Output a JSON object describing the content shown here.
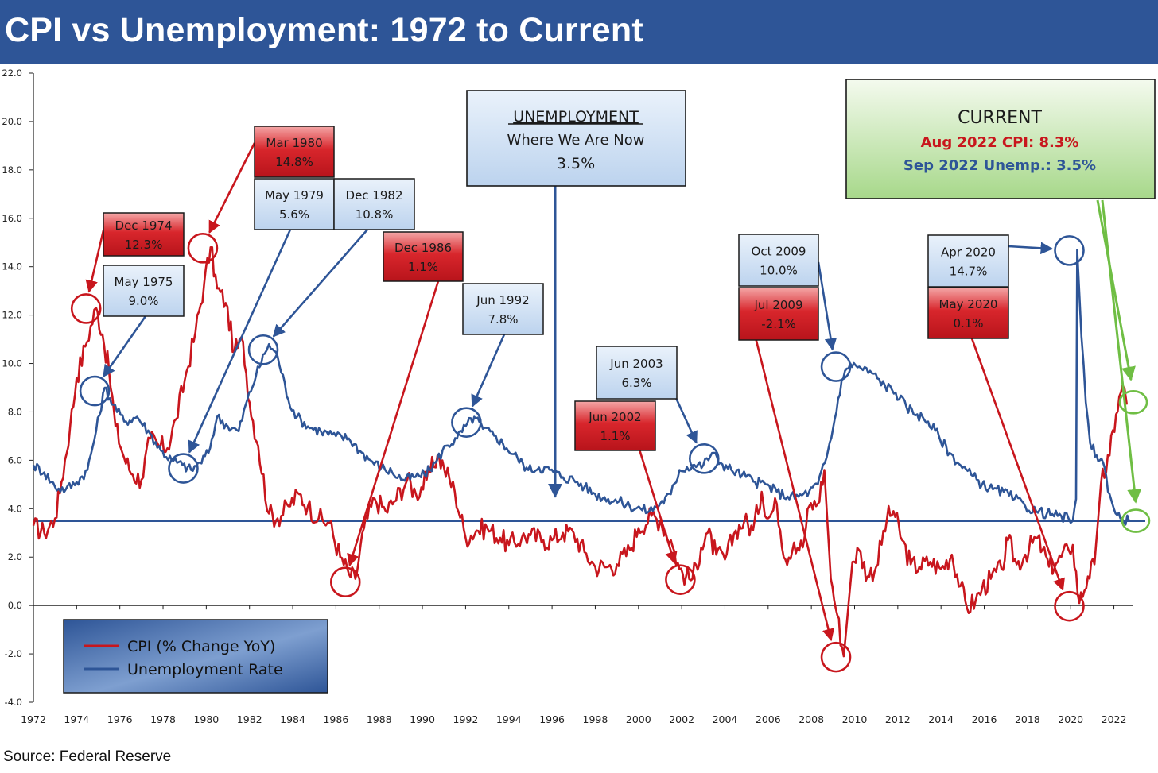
{
  "title": "CPI vs Unemployment: 1972 to Current",
  "source": "Source: Federal Reserve",
  "colors": {
    "title_bg": "#2e5597",
    "cpi": "#c8161d",
    "unemployment": "#2e5597",
    "current": "#6fbe44",
    "red_box": "#d0242b",
    "blue_box": "#c9dcf1"
  },
  "chart_data": {
    "type": "line",
    "title": "CPI vs Unemployment: 1972 to Current",
    "xlabel": "",
    "ylabel": "",
    "xlim": [
      1972,
      2022.9
    ],
    "ylim": [
      -4.0,
      22.0
    ],
    "x_ticks": [
      "1972",
      "1974",
      "1976",
      "1978",
      "1980",
      "1982",
      "1984",
      "1986",
      "1988",
      "1990",
      "1992",
      "1994",
      "1996",
      "1998",
      "2000",
      "2002",
      "2004",
      "2006",
      "2008",
      "2010",
      "2012",
      "2014",
      "2016",
      "2018",
      "2020",
      "2022"
    ],
    "y_ticks": [
      "22.0",
      "20.0",
      "18.0",
      "16.0",
      "14.0",
      "12.0",
      "10.0",
      "8.0",
      "6.0",
      "4.0",
      "2.0",
      "0.0",
      "-2.0",
      "-4.0"
    ],
    "grid": false,
    "legend_position": "bottom-left",
    "series": [
      {
        "name": "CPI (% Change YoY)",
        "color": "#c8161d",
        "points": [
          [
            1972.0,
            3.3
          ],
          [
            1972.5,
            3.0
          ],
          [
            1973.0,
            3.6
          ],
          [
            1973.3,
            5.1
          ],
          [
            1973.7,
            7.4
          ],
          [
            1974.0,
            9.4
          ],
          [
            1974.4,
            10.7
          ],
          [
            1974.9,
            12.3
          ],
          [
            1975.2,
            11.2
          ],
          [
            1975.5,
            9.7
          ],
          [
            1975.8,
            7.4
          ],
          [
            1976.2,
            6.1
          ],
          [
            1976.6,
            5.4
          ],
          [
            1977.0,
            5.2
          ],
          [
            1977.4,
            6.9
          ],
          [
            1977.8,
            6.6
          ],
          [
            1978.2,
            6.5
          ],
          [
            1978.6,
            7.7
          ],
          [
            1979.0,
            9.3
          ],
          [
            1979.5,
            11.3
          ],
          [
            1979.9,
            13.3
          ],
          [
            1980.2,
            14.8
          ],
          [
            1980.5,
            13.1
          ],
          [
            1980.9,
            12.5
          ],
          [
            1981.3,
            10.5
          ],
          [
            1981.7,
            10.9
          ],
          [
            1982.0,
            8.4
          ],
          [
            1982.4,
            6.6
          ],
          [
            1982.9,
            3.8
          ],
          [
            1983.3,
            3.6
          ],
          [
            1983.8,
            4.1
          ],
          [
            1984.3,
            4.6
          ],
          [
            1984.7,
            4.1
          ],
          [
            1985.2,
            3.6
          ],
          [
            1985.7,
            3.4
          ],
          [
            1986.2,
            2.0
          ],
          [
            1986.6,
            1.3
          ],
          [
            1986.9,
            1.1
          ],
          [
            1987.3,
            3.2
          ],
          [
            1987.8,
            4.4
          ],
          [
            1988.3,
            3.9
          ],
          [
            1988.7,
            4.3
          ],
          [
            1989.3,
            5.2
          ],
          [
            1989.7,
            4.6
          ],
          [
            1990.2,
            5.2
          ],
          [
            1990.7,
            6.2
          ],
          [
            1991.0,
            5.7
          ],
          [
            1991.5,
            4.7
          ],
          [
            1992.0,
            2.8
          ],
          [
            1992.5,
            3.1
          ],
          [
            1993.0,
            3.2
          ],
          [
            1993.6,
            2.8
          ],
          [
            1994.0,
            2.5
          ],
          [
            1994.6,
            2.8
          ],
          [
            1995.0,
            2.9
          ],
          [
            1995.6,
            2.7
          ],
          [
            1996.0,
            2.7
          ],
          [
            1996.5,
            3.0
          ],
          [
            1997.0,
            3.0
          ],
          [
            1997.5,
            2.2
          ],
          [
            1998.0,
            1.6
          ],
          [
            1998.6,
            1.6
          ],
          [
            1999.0,
            1.7
          ],
          [
            1999.6,
            2.3
          ],
          [
            2000.0,
            3.2
          ],
          [
            2000.6,
            3.7
          ],
          [
            2001.0,
            3.5
          ],
          [
            2001.5,
            2.7
          ],
          [
            2001.9,
            1.5
          ],
          [
            2002.2,
            1.2
          ],
          [
            2002.5,
            1.1
          ],
          [
            2002.9,
            2.4
          ],
          [
            2003.2,
            3.0
          ],
          [
            2003.6,
            2.1
          ],
          [
            2004.0,
            1.9
          ],
          [
            2004.5,
            3.1
          ],
          [
            2004.9,
            3.5
          ],
          [
            2005.3,
            3.1
          ],
          [
            2005.7,
            4.7
          ],
          [
            2006.0,
            3.6
          ],
          [
            2006.4,
            4.2
          ],
          [
            2006.8,
            1.9
          ],
          [
            2007.2,
            2.6
          ],
          [
            2007.6,
            2.4
          ],
          [
            2007.9,
            4.1
          ],
          [
            2008.3,
            4.2
          ],
          [
            2008.6,
            5.6
          ],
          [
            2008.9,
            1.1
          ],
          [
            2009.2,
            -0.4
          ],
          [
            2009.5,
            -2.1
          ],
          [
            2009.9,
            1.8
          ],
          [
            2010.2,
            2.3
          ],
          [
            2010.6,
            1.2
          ],
          [
            2011.0,
            1.6
          ],
          [
            2011.5,
            3.6
          ],
          [
            2011.8,
            3.9
          ],
          [
            2012.2,
            2.7
          ],
          [
            2012.6,
            1.7
          ],
          [
            2013.0,
            1.6
          ],
          [
            2013.5,
            1.8
          ],
          [
            2014.0,
            1.5
          ],
          [
            2014.5,
            2.1
          ],
          [
            2014.9,
            0.8
          ],
          [
            2015.2,
            -0.1
          ],
          [
            2015.6,
            0.2
          ],
          [
            2015.9,
            0.7
          ],
          [
            2016.3,
            1.1
          ],
          [
            2016.8,
            1.5
          ],
          [
            2017.1,
            2.7
          ],
          [
            2017.5,
            1.7
          ],
          [
            2017.9,
            2.1
          ],
          [
            2018.4,
            2.8
          ],
          [
            2018.7,
            2.3
          ],
          [
            2019.0,
            1.6
          ],
          [
            2019.4,
            1.8
          ],
          [
            2019.9,
            2.3
          ],
          [
            2020.1,
            2.5
          ],
          [
            2020.4,
            0.1
          ],
          [
            2020.8,
            1.2
          ],
          [
            2021.1,
            1.7
          ],
          [
            2021.4,
            5.0
          ],
          [
            2021.8,
            6.2
          ],
          [
            2022.1,
            7.9
          ],
          [
            2022.4,
            9.1
          ],
          [
            2022.6,
            8.3
          ]
        ]
      },
      {
        "name": "Unemployment Rate",
        "color": "#2e5597",
        "points": [
          [
            1972.0,
            5.8
          ],
          [
            1972.5,
            5.5
          ],
          [
            1973.0,
            4.9
          ],
          [
            1973.5,
            4.8
          ],
          [
            1974.0,
            5.1
          ],
          [
            1974.5,
            5.6
          ],
          [
            1974.9,
            7.2
          ],
          [
            1975.3,
            9.0
          ],
          [
            1975.7,
            8.3
          ],
          [
            1976.2,
            7.6
          ],
          [
            1976.8,
            7.8
          ],
          [
            1977.4,
            7.1
          ],
          [
            1977.9,
            6.4
          ],
          [
            1978.4,
            6.0
          ],
          [
            1978.9,
            5.8
          ],
          [
            1979.3,
            5.6
          ],
          [
            1979.7,
            5.9
          ],
          [
            1980.1,
            6.3
          ],
          [
            1980.5,
            7.8
          ],
          [
            1981.0,
            7.4
          ],
          [
            1981.5,
            7.2
          ],
          [
            1981.9,
            8.5
          ],
          [
            1982.3,
            9.5
          ],
          [
            1982.7,
            10.4
          ],
          [
            1982.9,
            10.8
          ],
          [
            1983.3,
            10.3
          ],
          [
            1983.8,
            8.5
          ],
          [
            1984.2,
            7.8
          ],
          [
            1984.7,
            7.4
          ],
          [
            1985.3,
            7.2
          ],
          [
            1986.0,
            7.0
          ],
          [
            1986.6,
            6.9
          ],
          [
            1987.1,
            6.4
          ],
          [
            1987.6,
            6.0
          ],
          [
            1988.1,
            5.7
          ],
          [
            1988.6,
            5.5
          ],
          [
            1989.1,
            5.2
          ],
          [
            1989.6,
            5.3
          ],
          [
            1990.1,
            5.4
          ],
          [
            1990.6,
            5.9
          ],
          [
            1991.1,
            6.6
          ],
          [
            1991.6,
            6.9
          ],
          [
            1992.0,
            7.4
          ],
          [
            1992.4,
            7.8
          ],
          [
            1992.8,
            7.3
          ],
          [
            1993.4,
            7.0
          ],
          [
            1993.9,
            6.5
          ],
          [
            1994.4,
            6.1
          ],
          [
            1994.9,
            5.6
          ],
          [
            1995.4,
            5.7
          ],
          [
            1995.9,
            5.6
          ],
          [
            1996.5,
            5.3
          ],
          [
            1997.0,
            5.2
          ],
          [
            1997.5,
            4.9
          ],
          [
            1998.0,
            4.6
          ],
          [
            1998.6,
            4.4
          ],
          [
            1999.1,
            4.3
          ],
          [
            1999.6,
            4.1
          ],
          [
            2000.1,
            4.0
          ],
          [
            2000.5,
            3.9
          ],
          [
            2001.0,
            4.2
          ],
          [
            2001.5,
            4.6
          ],
          [
            2001.9,
            5.6
          ],
          [
            2002.5,
            5.8
          ],
          [
            2003.0,
            5.8
          ],
          [
            2003.4,
            6.3
          ],
          [
            2003.8,
            5.9
          ],
          [
            2004.3,
            5.6
          ],
          [
            2004.8,
            5.4
          ],
          [
            2005.4,
            5.1
          ],
          [
            2005.9,
            5.0
          ],
          [
            2006.4,
            4.7
          ],
          [
            2006.9,
            4.5
          ],
          [
            2007.4,
            4.5
          ],
          [
            2007.9,
            4.7
          ],
          [
            2008.3,
            5.0
          ],
          [
            2008.7,
            6.1
          ],
          [
            2009.0,
            7.3
          ],
          [
            2009.4,
            9.3
          ],
          [
            2009.8,
            10.0
          ],
          [
            2010.3,
            9.8
          ],
          [
            2010.8,
            9.6
          ],
          [
            2011.4,
            9.1
          ],
          [
            2011.9,
            8.8
          ],
          [
            2012.4,
            8.2
          ],
          [
            2012.9,
            7.9
          ],
          [
            2013.4,
            7.6
          ],
          [
            2013.9,
            7.0
          ],
          [
            2014.4,
            6.3
          ],
          [
            2014.9,
            5.8
          ],
          [
            2015.4,
            5.4
          ],
          [
            2015.9,
            5.0
          ],
          [
            2016.4,
            4.8
          ],
          [
            2016.9,
            4.7
          ],
          [
            2017.4,
            4.4
          ],
          [
            2017.9,
            4.1
          ],
          [
            2018.4,
            3.9
          ],
          [
            2018.9,
            3.8
          ],
          [
            2019.4,
            3.7
          ],
          [
            2019.9,
            3.6
          ],
          [
            2020.1,
            3.5
          ],
          [
            2020.25,
            4.4
          ],
          [
            2020.3,
            14.7
          ],
          [
            2020.5,
            11.1
          ],
          [
            2020.7,
            8.4
          ],
          [
            2020.9,
            6.7
          ],
          [
            2021.2,
            6.2
          ],
          [
            2021.5,
            5.9
          ],
          [
            2021.8,
            4.6
          ],
          [
            2022.0,
            4.0
          ],
          [
            2022.3,
            3.6
          ],
          [
            2022.7,
            3.5
          ]
        ]
      }
    ],
    "reference_line": {
      "y": 3.5,
      "color": "#2e5597"
    },
    "legend": [
      {
        "name": "CPI (% Change YoY)",
        "color": "#c8161d"
      },
      {
        "name": "Unemployment Rate",
        "color": "#2e5597"
      }
    ],
    "annotations": [
      {
        "id": "dec-1974",
        "lines": [
          "Dec 1974",
          "12.3%"
        ],
        "style": "red",
        "target": [
          1974.4,
          12.3
        ]
      },
      {
        "id": "may-1975",
        "lines": [
          "May 1975",
          "9.0%"
        ],
        "style": "blue",
        "target": [
          1974.8,
          8.9
        ]
      },
      {
        "id": "mar-1980",
        "lines": [
          "Mar 1980",
          "14.8%"
        ],
        "style": "red",
        "target": [
          1979.8,
          14.8
        ]
      },
      {
        "id": "may-1979",
        "lines": [
          "May 1979",
          "5.6%"
        ],
        "style": "blue",
        "target": [
          1978.9,
          5.7
        ]
      },
      {
        "id": "dec-1982",
        "lines": [
          "Dec 1982",
          "10.8%"
        ],
        "style": "blue",
        "target": [
          1982.6,
          10.6
        ]
      },
      {
        "id": "dec-1986",
        "lines": [
          "Dec 1986",
          "1.1%"
        ],
        "style": "red",
        "target": [
          1986.4,
          1.0
        ]
      },
      {
        "id": "jun-1992",
        "lines": [
          "Jun 1992",
          "7.8%"
        ],
        "style": "blue",
        "target": [
          1992.0,
          7.6
        ]
      },
      {
        "id": "jun-2003",
        "lines": [
          "Jun 2003",
          "6.3%"
        ],
        "style": "blue",
        "target": [
          2003.0,
          6.1
        ]
      },
      {
        "id": "jun-2002",
        "lines": [
          "Jun 2002",
          "1.1%"
        ],
        "style": "red",
        "target": [
          2001.9,
          1.1
        ]
      },
      {
        "id": "oct-2009",
        "lines": [
          "Oct 2009",
          "10.0%"
        ],
        "style": "blue",
        "target": [
          2009.1,
          9.9
        ]
      },
      {
        "id": "jul-2009",
        "lines": [
          "Jul 2009",
          "-2.1%"
        ],
        "style": "red",
        "target": [
          2009.1,
          -2.1
        ]
      },
      {
        "id": "apr-2020",
        "lines": [
          "Apr 2020",
          "14.7%"
        ],
        "style": "blue",
        "target": [
          2019.9,
          14.7
        ]
      },
      {
        "id": "may-2020",
        "lines": [
          "May 2020",
          "0.1%"
        ],
        "style": "red",
        "target": [
          2019.9,
          0.0
        ]
      }
    ],
    "unemployment_box": {
      "heading": "UNEMPLOYMENT",
      "line2": "Where We Are Now",
      "line3": "3.5%"
    },
    "current_box": {
      "heading": "CURRENT",
      "cpi_line": "Aug 2022 CPI:  8.3%",
      "unemp_line": "Sep 2022 Unemp.: 3.5%"
    }
  }
}
